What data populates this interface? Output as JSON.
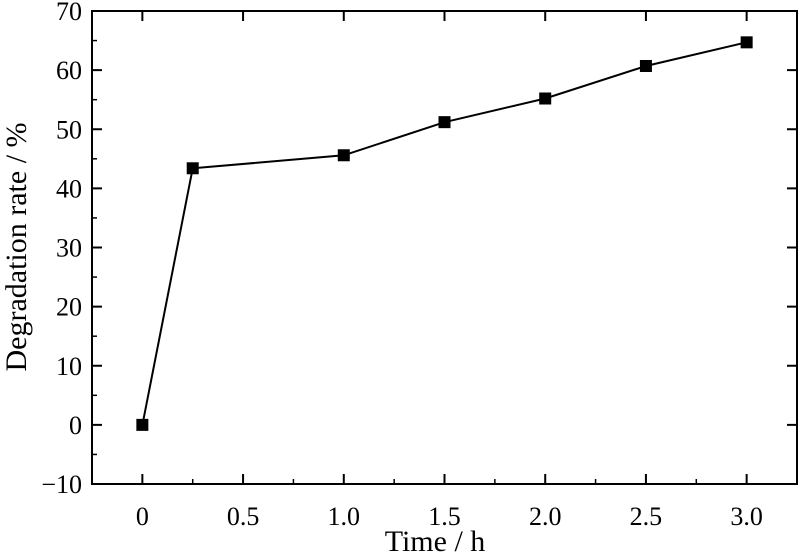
{
  "chart_data": {
    "type": "line",
    "title": "",
    "xlabel": "Time / h",
    "ylabel": "Degradation rate / %",
    "xlim": [
      -0.25,
      3.25
    ],
    "ylim": [
      -10,
      70
    ],
    "x_ticks": [
      0,
      0.5,
      1.0,
      1.5,
      2.0,
      2.5,
      3.0
    ],
    "x_tick_labels": [
      "0",
      "0.5",
      "1.0",
      "1.5",
      "2.0",
      "2.5",
      "3.0"
    ],
    "y_ticks": [
      -10,
      0,
      10,
      20,
      30,
      40,
      50,
      60,
      70
    ],
    "y_tick_labels": [
      "−10",
      "0",
      "10",
      "20",
      "30",
      "40",
      "50",
      "60",
      "70"
    ],
    "grid": false,
    "legend": "none",
    "series": [
      {
        "x": [
          0,
          0.25,
          1.0,
          1.5,
          2.0,
          2.5,
          3.0
        ],
        "y": [
          0,
          43.4,
          45.6,
          51.2,
          55.2,
          60.7,
          64.7
        ],
        "marker": "square",
        "color": "#000000"
      }
    ]
  }
}
